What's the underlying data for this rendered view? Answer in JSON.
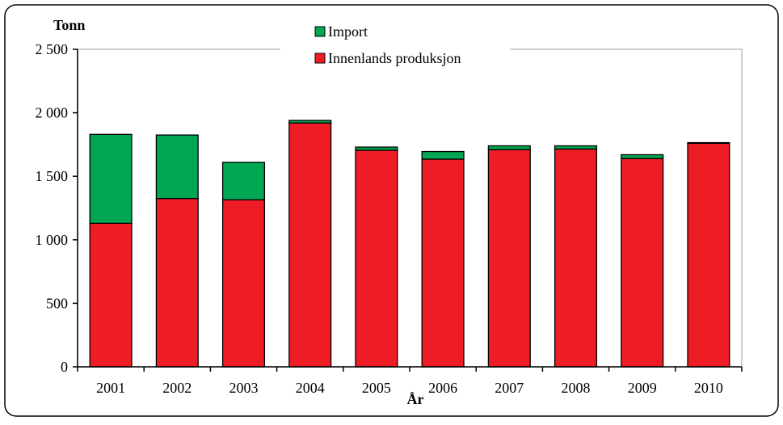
{
  "chart_data": {
    "type": "bar",
    "stacked": true,
    "categories": [
      "2001",
      "2002",
      "2003",
      "2004",
      "2005",
      "2006",
      "2007",
      "2008",
      "2009",
      "2010"
    ],
    "series": [
      {
        "name": "Innenlands produksjon",
        "color": "#ee1c25",
        "values": [
          1130,
          1325,
          1315,
          1920,
          1705,
          1635,
          1710,
          1715,
          1640,
          1760
        ]
      },
      {
        "name": "Import",
        "color": "#00a651",
        "values": [
          700,
          500,
          295,
          20,
          25,
          60,
          30,
          25,
          30,
          5
        ]
      }
    ],
    "ylabel": "Tonn",
    "xlabel": "År",
    "ylim": [
      0,
      2500
    ],
    "yticks": [
      0,
      500,
      1000,
      1500,
      2000,
      2500
    ],
    "ytick_labels": [
      "0",
      "500",
      "1 000",
      "1 500",
      "2 000",
      "2 500"
    ],
    "legend": {
      "placement": "top-center",
      "items": [
        "Import",
        "Innenlands produksjon"
      ]
    },
    "grid": false,
    "border_color": "#000000"
  }
}
